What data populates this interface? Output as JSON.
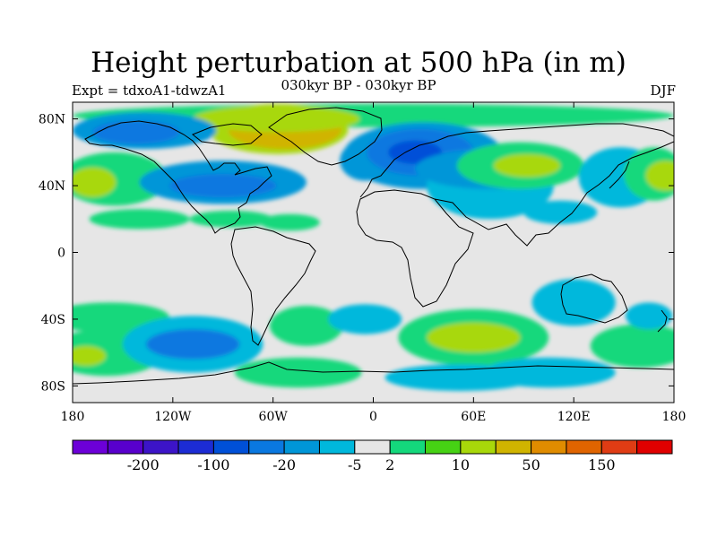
{
  "title": "Height perturbation at 500 hPa (in m)",
  "subtitle": "030kyr BP - 030kyr BP",
  "experiment_label": "Expt = tdxoA1-tdwzA1",
  "season_label": "DJF",
  "chart_data": {
    "type": "heatmap",
    "projection": "equirectangular",
    "variable": "500 hPa geopotential height perturbation",
    "units": "m",
    "xlim": [
      -180,
      180
    ],
    "ylim": [
      -90,
      90
    ],
    "x_ticks": [
      {
        "value": -180,
        "label": "180"
      },
      {
        "value": -120,
        "label": "120W"
      },
      {
        "value": -60,
        "label": "60W"
      },
      {
        "value": 0,
        "label": "0"
      },
      {
        "value": 60,
        "label": "60E"
      },
      {
        "value": 120,
        "label": "120E"
      },
      {
        "value": 180,
        "label": "180"
      }
    ],
    "y_ticks": [
      {
        "value": 80,
        "label": "80N"
      },
      {
        "value": 40,
        "label": "40N"
      },
      {
        "value": 0,
        "label": "0"
      },
      {
        "value": -40,
        "label": "40S"
      },
      {
        "value": -80,
        "label": "80S"
      }
    ],
    "colorbar": {
      "colors": [
        "#6c00d8",
        "#5800cc",
        "#3c14c8",
        "#1c2cd4",
        "#0050d8",
        "#0a78e0",
        "#0096d8",
        "#00b8dc",
        "#e6e6e6",
        "#14d87c",
        "#46d214",
        "#a8d80a",
        "#d0b400",
        "#e08c00",
        "#e06400",
        "#e03c14",
        "#e00000"
      ],
      "tick_labels": [
        {
          "after_box": 2,
          "label": "-200"
        },
        {
          "after_box": 4,
          "label": "-100"
        },
        {
          "after_box": 6,
          "label": "-20"
        },
        {
          "after_box": 8,
          "label": "-5"
        },
        {
          "after_box": 9,
          "label": "2"
        },
        {
          "after_box": 11,
          "label": "10"
        },
        {
          "after_box": 13,
          "label": "50"
        },
        {
          "after_box": 15,
          "label": "150"
        }
      ]
    },
    "anomaly_regions": [
      {
        "lon": 0,
        "lat": 82,
        "rlon": 180,
        "rlat": 7,
        "color": "#14d87c"
      },
      {
        "lon": -57,
        "lat": 74,
        "rlon": 42,
        "rlat": 15,
        "color": "#a8d80a"
      },
      {
        "lon": -53,
        "lat": 74,
        "rlon": 34,
        "rlat": 12,
        "color": "#d0b400"
      },
      {
        "lon": -58,
        "lat": 80,
        "rlon": 50,
        "rlat": 8,
        "color": "#a8d80a"
      },
      {
        "lon": -137,
        "lat": 73,
        "rlon": 43,
        "rlat": 11,
        "color": "#0096d8"
      },
      {
        "lon": -142,
        "lat": 72,
        "rlon": 26,
        "rlat": 7,
        "color": "#0a78e0"
      },
      {
        "lon": -155,
        "lat": 44,
        "rlon": 32,
        "rlat": 16,
        "color": "#14d87c"
      },
      {
        "lon": -168,
        "lat": 42,
        "rlon": 14,
        "rlat": 9,
        "color": "#a8d80a"
      },
      {
        "lon": -90,
        "lat": 42,
        "rlon": 50,
        "rlat": 13,
        "color": "#0096d8"
      },
      {
        "lon": -90,
        "lat": 40,
        "rlon": 32,
        "rlat": 7,
        "color": "#0a78e0"
      },
      {
        "lon": -140,
        "lat": 20,
        "rlon": 30,
        "rlat": 6,
        "color": "#14d87c"
      },
      {
        "lon": -85,
        "lat": 20,
        "rlon": 25,
        "rlat": 5,
        "color": "#14d87c"
      },
      {
        "lon": -50,
        "lat": 18,
        "rlon": 18,
        "rlat": 5,
        "color": "#14d87c"
      },
      {
        "lon": -5,
        "lat": 55,
        "rlon": 15,
        "rlat": 12,
        "color": "#0096d8"
      },
      {
        "lon": 30,
        "lat": 58,
        "rlon": 48,
        "rlat": 20,
        "color": "#0096d8"
      },
      {
        "lon": 28,
        "lat": 60,
        "rlon": 32,
        "rlat": 14,
        "color": "#0a78e0"
      },
      {
        "lon": 25,
        "lat": 60,
        "rlon": 16,
        "rlat": 7,
        "color": "#0050d8"
      },
      {
        "lon": 70,
        "lat": 40,
        "rlon": 38,
        "rlat": 20,
        "color": "#00b8dc"
      },
      {
        "lon": 70,
        "lat": 50,
        "rlon": 45,
        "rlat": 12,
        "color": "#0096d8"
      },
      {
        "lon": 88,
        "lat": 52,
        "rlon": 38,
        "rlat": 14,
        "color": "#14d87c"
      },
      {
        "lon": 92,
        "lat": 52,
        "rlon": 20,
        "rlat": 7,
        "color": "#a8d80a"
      },
      {
        "lon": 112,
        "lat": 24,
        "rlon": 22,
        "rlat": 7,
        "color": "#00b8dc"
      },
      {
        "lon": 148,
        "lat": 45,
        "rlon": 25,
        "rlat": 18,
        "color": "#00b8dc"
      },
      {
        "lon": 168,
        "lat": 47,
        "rlon": 18,
        "rlat": 16,
        "color": "#14d87c"
      },
      {
        "lon": 175,
        "lat": 46,
        "rlon": 12,
        "rlat": 9,
        "color": "#a8d80a"
      },
      {
        "lon": -158,
        "lat": -39,
        "rlon": 36,
        "rlat": 9,
        "color": "#14d87c"
      },
      {
        "lon": -160,
        "lat": -60,
        "rlon": 35,
        "rlat": 14,
        "color": "#14d87c"
      },
      {
        "lon": -172,
        "lat": -62,
        "rlon": 12,
        "rlat": 6,
        "color": "#a8d80a"
      },
      {
        "lon": -108,
        "lat": -55,
        "rlon": 42,
        "rlat": 17,
        "color": "#00b8dc"
      },
      {
        "lon": -108,
        "lat": -55,
        "rlon": 28,
        "rlat": 9,
        "color": "#0a78e0"
      },
      {
        "lon": -40,
        "lat": -44,
        "rlon": 22,
        "rlat": 12,
        "color": "#14d87c"
      },
      {
        "lon": -45,
        "lat": -72,
        "rlon": 38,
        "rlat": 9,
        "color": "#14d87c"
      },
      {
        "lon": -5,
        "lat": -40,
        "rlon": 22,
        "rlat": 9,
        "color": "#00b8dc"
      },
      {
        "lon": 60,
        "lat": -51,
        "rlon": 45,
        "rlat": 17,
        "color": "#14d87c"
      },
      {
        "lon": 60,
        "lat": -51,
        "rlon": 28,
        "rlat": 9,
        "color": "#a8d80a"
      },
      {
        "lon": 52,
        "lat": -75,
        "rlon": 45,
        "rlat": 8,
        "color": "#00b8dc"
      },
      {
        "lon": 105,
        "lat": -72,
        "rlon": 40,
        "rlat": 9,
        "color": "#00b8dc"
      },
      {
        "lon": 120,
        "lat": -30,
        "rlon": 25,
        "rlat": 14,
        "color": "#00b8dc"
      },
      {
        "lon": 160,
        "lat": -56,
        "rlon": 30,
        "rlat": 13,
        "color": "#14d87c"
      },
      {
        "lon": 165,
        "lat": -38,
        "rlon": 14,
        "rlat": 8,
        "color": "#00b8dc"
      }
    ]
  }
}
